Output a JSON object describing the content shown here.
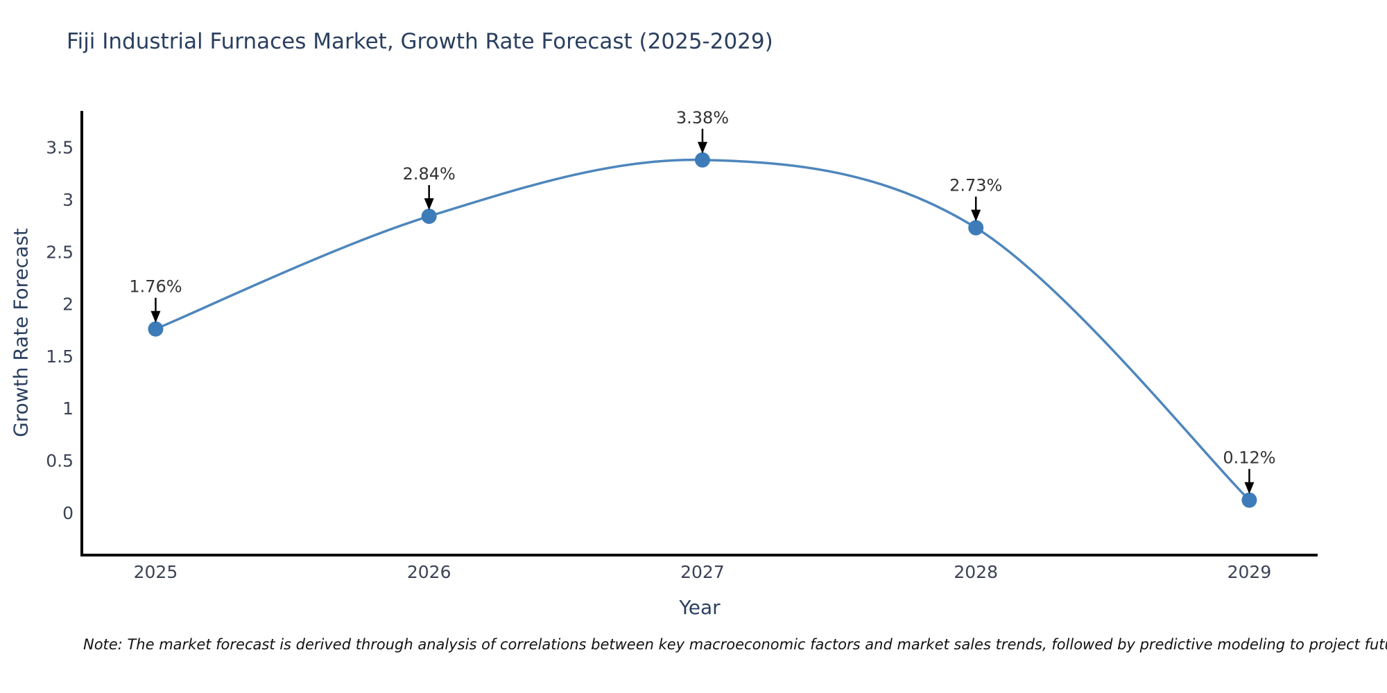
{
  "title": "Fiji Industrial Furnaces Market, Growth Rate Forecast (2025-2029)",
  "note": {
    "text": "Note: The market forecast is derived through analysis of correlations between key macroeconomic factors and market sales trends, followed by predictive modeling to project future sales"
  },
  "chart_data": {
    "type": "line",
    "title": "Fiji Industrial Furnaces Market, Growth Rate Forecast (2025-2029)",
    "xlabel": "Year",
    "ylabel": "Growth Rate Forecast",
    "x": [
      2025,
      2026,
      2027,
      2028,
      2029
    ],
    "values": [
      1.76,
      2.84,
      3.38,
      2.73,
      0.12
    ],
    "point_labels": [
      "1.76%",
      "2.84%",
      "3.38%",
      "2.73%",
      "0.12%"
    ],
    "yticks": [
      "0",
      "0.5",
      "1",
      "1.5",
      "2",
      "2.5",
      "3",
      "3.5"
    ],
    "ytick_values": [
      0,
      0.5,
      1,
      1.5,
      2,
      2.5,
      3,
      3.5
    ],
    "xlim": [
      2024.73,
      2029.25
    ],
    "ylim": [
      -0.4,
      3.85
    ],
    "line_shape": "spline",
    "grid": false,
    "legend_position": "none",
    "markers": true,
    "annotations_with_arrows": true,
    "colors": {
      "line": "#4e86bc",
      "marker": "#3d7cb8",
      "axis_line": "#000000",
      "tick_text": "#3b4254",
      "title_text": "#2a3f5f",
      "annotation_text": "#333333",
      "arrow": "#000000",
      "background": "#ffffff"
    }
  }
}
